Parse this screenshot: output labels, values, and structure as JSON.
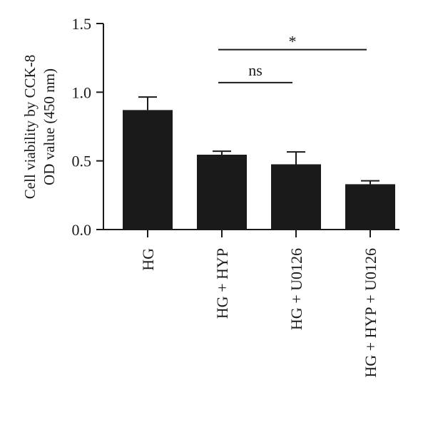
{
  "chart_data": {
    "type": "bar",
    "title": "",
    "xlabel": "",
    "ylabel": [
      "Cell viability by CCK-8",
      "OD value (450 nm)"
    ],
    "ylim": [
      0,
      1.5
    ],
    "yticks": [
      "0.0",
      "0.5",
      "1.0",
      "1.5"
    ],
    "ytick_values": [
      0,
      0.5,
      1.0,
      1.5
    ],
    "categories": [
      "HG",
      "HG + HYP",
      "HG + U0126",
      "HG + HYP + U0126"
    ],
    "values": [
      0.87,
      0.545,
      0.475,
      0.33
    ],
    "errors": [
      0.095,
      0.025,
      0.09,
      0.025
    ],
    "bar_color": "#1a1a1a",
    "significance": [
      {
        "from": 1,
        "to": 2,
        "label": "ns",
        "y": 1.07
      },
      {
        "from": 1,
        "to": 3,
        "label": "*",
        "y": 1.31
      }
    ]
  }
}
